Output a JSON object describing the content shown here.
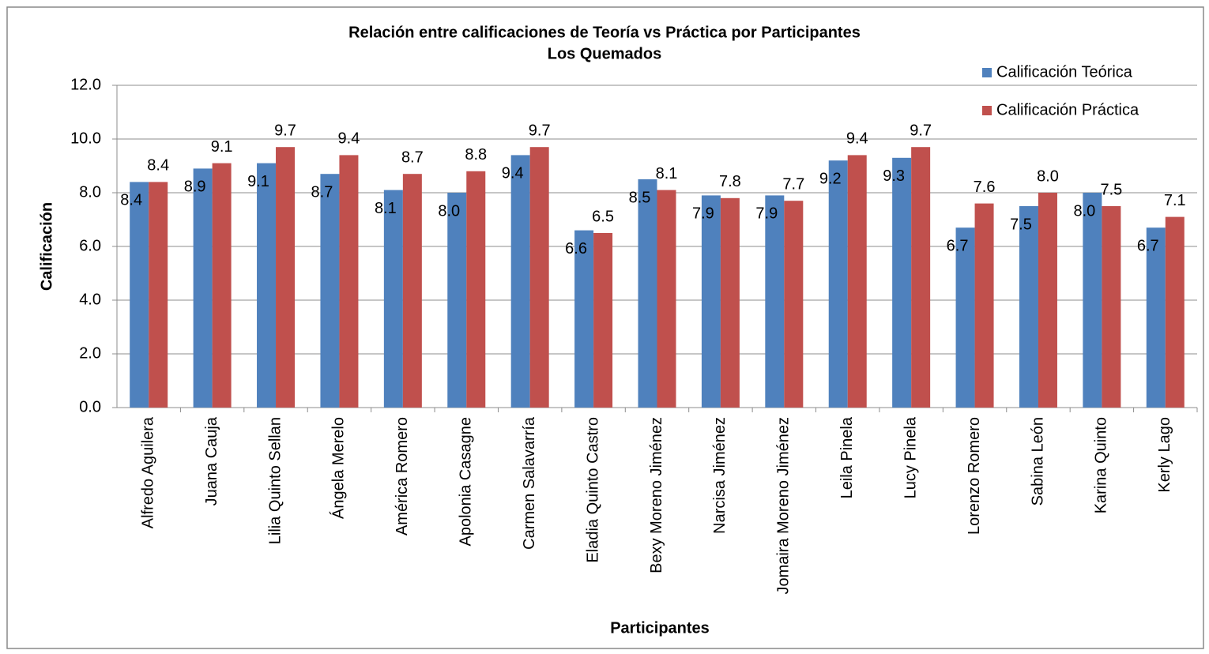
{
  "chart_data": {
    "type": "bar",
    "title": "Relación entre calificaciones de Teoría vs Práctica por Participantes",
    "subtitle": "Los Quemados",
    "x_label": "Participantes",
    "y_label": "Calificación",
    "categories": [
      "Alfredo Aguilera",
      "Juana Cauja",
      "Lilia Quinto Sellan",
      "Ángela Merelo",
      "América Romero",
      "Apolonia Casagne",
      "Carmen Salavarría",
      "Eladia Quinto Castro",
      "Bexy Moreno Jiménez",
      "Narcisa Jiménez",
      "Jomaira Moreno Jiménez",
      "Leila Pinela",
      "Lucy Pinela",
      "Lorenzo Romero",
      "Sabina León",
      "Karina Quinto",
      "Kerly Lago"
    ],
    "series": [
      {
        "name": "Calificación Teórica",
        "color": "#4f81bd",
        "values": [
          8.4,
          8.9,
          9.1,
          8.7,
          8.1,
          8.0,
          9.4,
          6.6,
          8.5,
          7.9,
          7.9,
          9.2,
          9.3,
          6.7,
          7.5,
          8.0,
          6.7
        ],
        "value_labels": [
          "8.4",
          "8.9",
          "9.1",
          "8.7",
          "8.1",
          "8.0",
          "9.4",
          "6.6",
          "8.5",
          "7.9",
          "7.9",
          "9.2",
          "9.3",
          "6.7",
          "7.5",
          "8.0",
          "6.7"
        ]
      },
      {
        "name": "Calificación Práctica",
        "color": "#c0504d",
        "values": [
          8.4,
          9.1,
          9.7,
          9.4,
          8.7,
          8.8,
          9.7,
          6.5,
          8.1,
          7.8,
          7.7,
          9.4,
          9.7,
          7.6,
          8.0,
          7.5,
          7.1
        ],
        "value_labels": [
          "8.4",
          "9.1",
          "9.7",
          "9.4",
          "8.7",
          "8.8",
          "9.7",
          "6.5",
          "8.1",
          "7.8",
          "7.7",
          "9.4",
          "9.7",
          "7.6",
          "8.0",
          "7.5",
          "7.1"
        ]
      }
    ],
    "ylim": [
      0,
      12
    ],
    "yticks": [
      {
        "value": 0,
        "label": "0.0"
      },
      {
        "value": 2,
        "label": "2.0"
      },
      {
        "value": 4,
        "label": "4.0"
      },
      {
        "value": 6,
        "label": "6.0"
      },
      {
        "value": 8,
        "label": "8.0"
      },
      {
        "value": 10,
        "label": "10.0"
      },
      {
        "value": 12,
        "label": "12.0"
      }
    ],
    "grid": true,
    "legend": "top-right"
  }
}
